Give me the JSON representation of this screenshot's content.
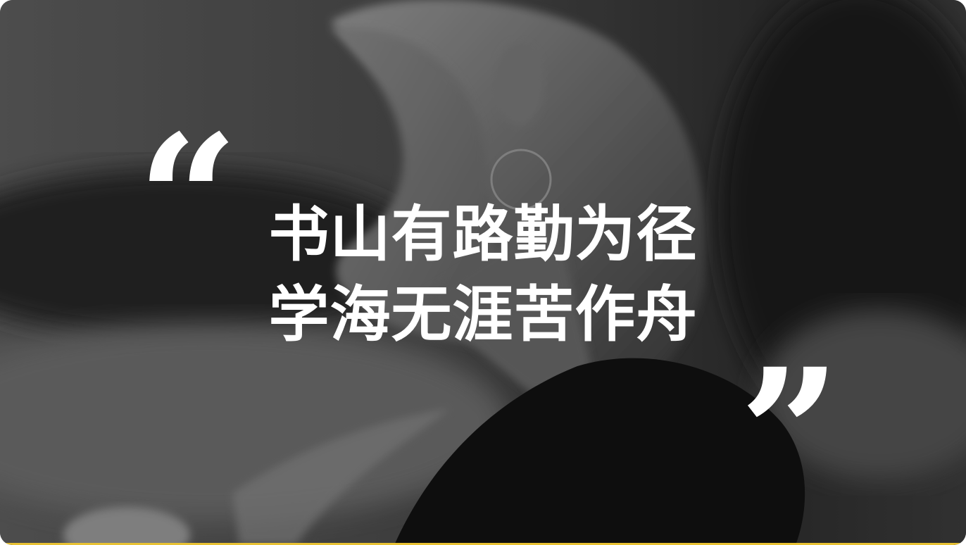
{
  "quote": {
    "open_mark": "“",
    "line1": "书山有路勤为径",
    "line2": "学海无涯苦作舟",
    "close_mark": "”"
  },
  "background": {
    "subject": "woman-profile-photo",
    "tone": "grayscale"
  },
  "colors": {
    "text": "#ffffff",
    "accent_strip": "#e8c234"
  }
}
